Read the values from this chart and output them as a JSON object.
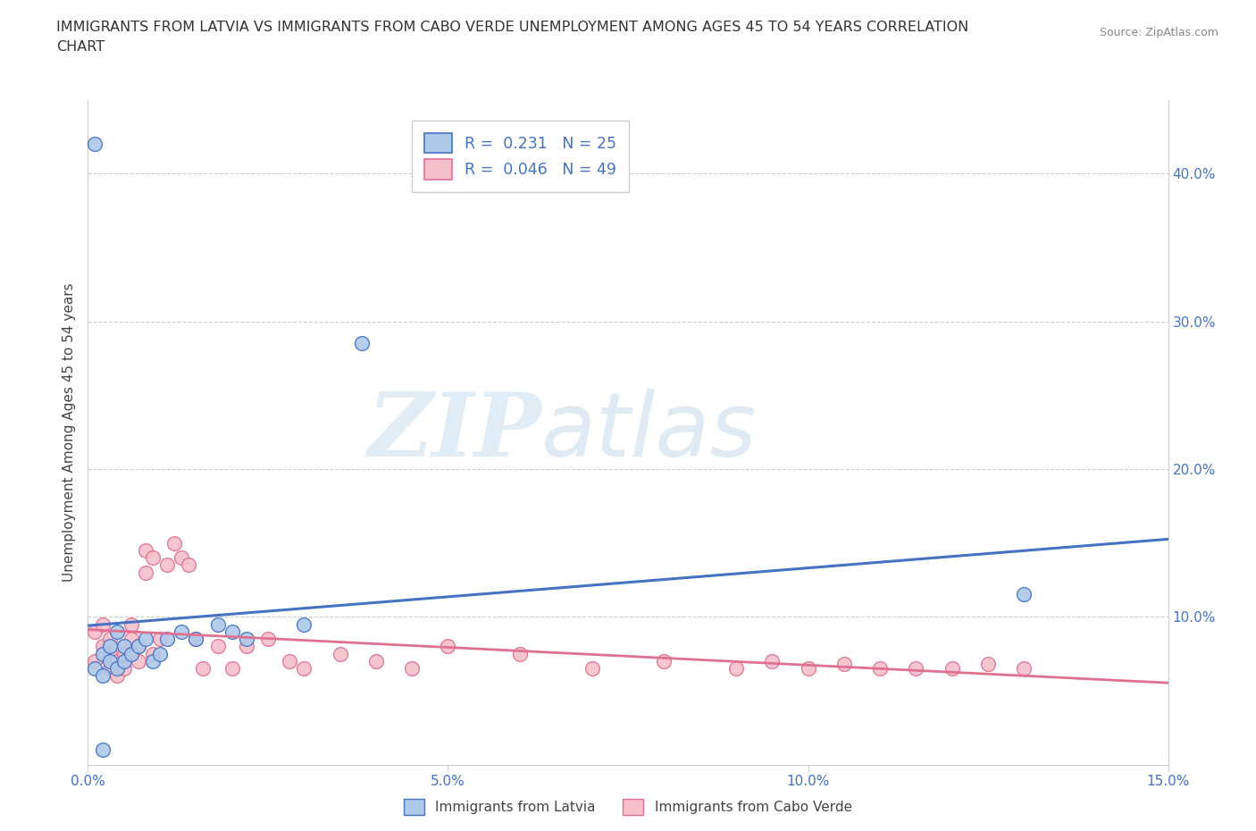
{
  "title_line1": "IMMIGRANTS FROM LATVIA VS IMMIGRANTS FROM CABO VERDE UNEMPLOYMENT AMONG AGES 45 TO 54 YEARS CORRELATION",
  "title_line2": "CHART",
  "source": "Source: ZipAtlas.com",
  "ylabel": "Unemployment Among Ages 45 to 54 years",
  "xlim": [
    0.0,
    0.15
  ],
  "ylim": [
    0.0,
    0.45
  ],
  "xticks": [
    0.0,
    0.05,
    0.1,
    0.15
  ],
  "xticklabels": [
    "0.0%",
    "5.0%",
    "10.0%",
    "15.0%"
  ],
  "yticks_right": [
    0.1,
    0.2,
    0.3,
    0.4
  ],
  "yticklabels_right": [
    "10.0%",
    "20.0%",
    "30.0%",
    "40.0%"
  ],
  "watermark_zip": "ZIP",
  "watermark_atlas": "atlas",
  "latvia_color": "#aec9e8",
  "latvia_edge_color": "#4472c4",
  "cabo_verde_color": "#f5c0cb",
  "cabo_verde_edge_color": "#e07090",
  "latvia_line_color": "#4472c4",
  "cabo_line_color": "#e07090",
  "latvia_R": 0.231,
  "latvia_N": 25,
  "cabo_verde_R": 0.046,
  "cabo_verde_N": 49,
  "legend_label_latvia": "Immigrants from Latvia",
  "legend_label_cabo": "Immigrants from Cabo Verde",
  "latvia_scatter_x": [
    0.001,
    0.001,
    0.002,
    0.002,
    0.003,
    0.003,
    0.004,
    0.004,
    0.005,
    0.005,
    0.006,
    0.007,
    0.008,
    0.009,
    0.01,
    0.011,
    0.013,
    0.015,
    0.018,
    0.02,
    0.022,
    0.03,
    0.038,
    0.13,
    0.002
  ],
  "latvia_scatter_y": [
    0.42,
    0.065,
    0.06,
    0.075,
    0.07,
    0.08,
    0.065,
    0.09,
    0.08,
    0.07,
    0.075,
    0.08,
    0.085,
    0.07,
    0.075,
    0.085,
    0.09,
    0.085,
    0.095,
    0.09,
    0.085,
    0.095,
    0.285,
    0.115,
    0.01
  ],
  "cabo_scatter_x": [
    0.001,
    0.001,
    0.002,
    0.002,
    0.003,
    0.003,
    0.003,
    0.004,
    0.004,
    0.005,
    0.005,
    0.005,
    0.006,
    0.006,
    0.007,
    0.007,
    0.008,
    0.008,
    0.009,
    0.009,
    0.01,
    0.011,
    0.012,
    0.013,
    0.014,
    0.015,
    0.016,
    0.018,
    0.02,
    0.022,
    0.025,
    0.028,
    0.03,
    0.035,
    0.04,
    0.045,
    0.05,
    0.06,
    0.07,
    0.08,
    0.09,
    0.095,
    0.1,
    0.105,
    0.11,
    0.115,
    0.12,
    0.125,
    0.13
  ],
  "cabo_scatter_y": [
    0.09,
    0.07,
    0.08,
    0.095,
    0.075,
    0.065,
    0.085,
    0.07,
    0.06,
    0.08,
    0.065,
    0.075,
    0.085,
    0.095,
    0.07,
    0.08,
    0.13,
    0.145,
    0.14,
    0.075,
    0.085,
    0.135,
    0.15,
    0.14,
    0.135,
    0.085,
    0.065,
    0.08,
    0.065,
    0.08,
    0.085,
    0.07,
    0.065,
    0.075,
    0.07,
    0.065,
    0.08,
    0.075,
    0.065,
    0.07,
    0.065,
    0.07,
    0.065,
    0.068,
    0.065,
    0.065,
    0.065,
    0.068,
    0.065
  ],
  "grid_color": "#cccccc",
  "background_color": "#ffffff",
  "tick_color": "#4472c4",
  "axis_color": "#cccccc"
}
